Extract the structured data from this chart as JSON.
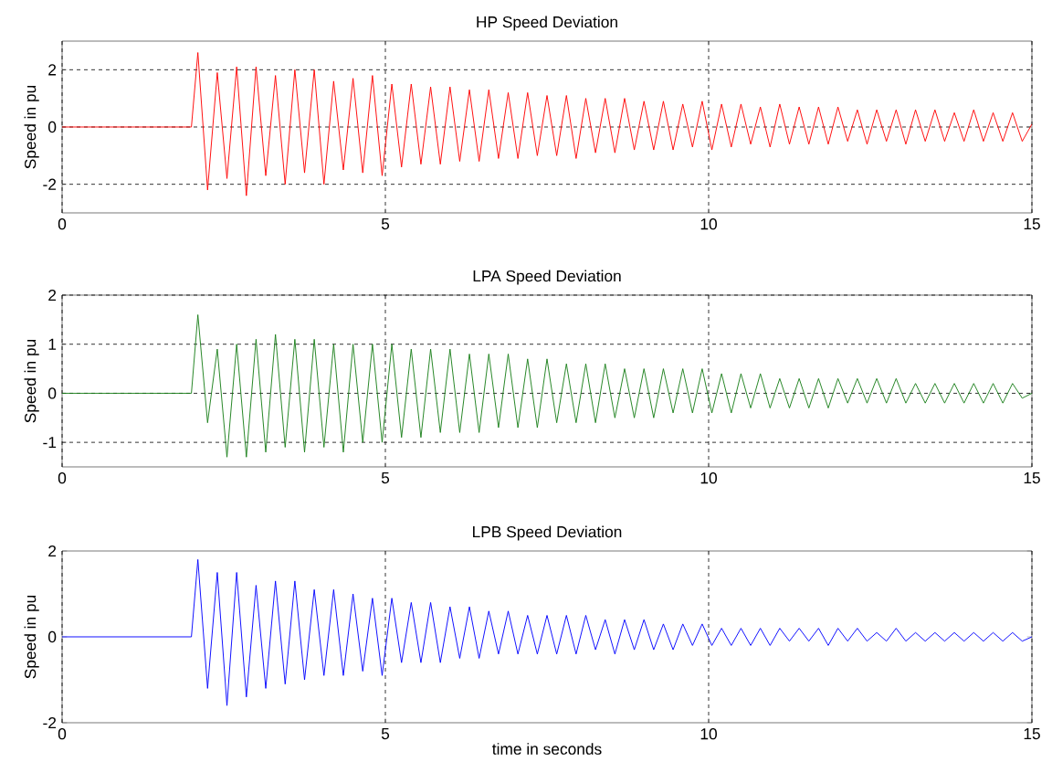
{
  "chart_data": [
    {
      "type": "line",
      "title": "HP Speed Deviation",
      "ylabel": "Speed in pu",
      "xlim": [
        0,
        15
      ],
      "ylim": [
        -3,
        3
      ],
      "xticks": [
        0,
        5,
        10,
        15
      ],
      "yticks": [
        -2,
        0,
        2
      ],
      "grid": true,
      "line_style": "solid",
      "x": [
        0,
        2,
        2.1,
        2.25,
        2.4,
        2.55,
        2.7,
        2.85,
        3,
        3.15,
        3.3,
        3.45,
        3.6,
        3.75,
        3.9,
        4.05,
        4.2,
        4.35,
        4.5,
        4.65,
        4.8,
        4.95,
        5.1,
        5.25,
        5.4,
        5.55,
        5.7,
        5.85,
        6,
        6.15,
        6.3,
        6.45,
        6.6,
        6.75,
        6.9,
        7.05,
        7.2,
        7.35,
        7.5,
        7.65,
        7.8,
        7.95,
        8.1,
        8.25,
        8.4,
        8.55,
        8.7,
        8.85,
        9,
        9.15,
        9.3,
        9.45,
        9.6,
        9.75,
        9.9,
        10.05,
        10.2,
        10.35,
        10.5,
        10.65,
        10.8,
        10.95,
        11.1,
        11.25,
        11.4,
        11.55,
        11.7,
        11.85,
        12,
        12.15,
        12.3,
        12.45,
        12.6,
        12.75,
        12.9,
        13.05,
        13.2,
        13.35,
        13.5,
        13.65,
        13.8,
        13.95,
        14.1,
        14.25,
        14.4,
        14.55,
        14.7,
        14.85,
        15
      ],
      "series": [
        {
          "color": "#ff0000",
          "values": [
            0,
            0,
            2.6,
            -2.2,
            1.9,
            -1.8,
            2.1,
            -2.4,
            2.1,
            -1.7,
            1.8,
            -2.0,
            2.0,
            -1.6,
            2.0,
            -2.0,
            1.6,
            -1.5,
            1.7,
            -1.6,
            1.8,
            -1.7,
            1.5,
            -1.4,
            1.5,
            -1.3,
            1.4,
            -1.3,
            1.4,
            -1.2,
            1.3,
            -1.2,
            1.3,
            -1.1,
            1.2,
            -1.1,
            1.2,
            -1.0,
            1.1,
            -1.0,
            1.1,
            -1.1,
            1.0,
            -0.9,
            1.0,
            -0.9,
            1.0,
            -0.8,
            0.9,
            -0.8,
            0.9,
            -0.8,
            0.8,
            -0.7,
            0.9,
            -0.8,
            0.8,
            -0.7,
            0.8,
            -0.6,
            0.7,
            -0.7,
            0.8,
            -0.6,
            0.7,
            -0.6,
            0.7,
            -0.6,
            0.7,
            -0.5,
            0.6,
            -0.6,
            0.6,
            -0.5,
            0.6,
            -0.6,
            0.6,
            -0.5,
            0.6,
            -0.5,
            0.5,
            -0.5,
            0.6,
            -0.5,
            0.5,
            -0.5,
            0.5,
            -0.5,
            0.1
          ]
        }
      ]
    },
    {
      "type": "line",
      "title": "LPA Speed Deviation",
      "ylabel": "Speed in pu",
      "xlim": [
        0,
        15
      ],
      "ylim": [
        -1.5,
        2
      ],
      "xticks": [
        0,
        5,
        10,
        15
      ],
      "yticks": [
        -1,
        0,
        1,
        2
      ],
      "grid": true,
      "line_style": "solid",
      "x": [
        0,
        2,
        2.1,
        2.25,
        2.4,
        2.55,
        2.7,
        2.85,
        3,
        3.15,
        3.3,
        3.45,
        3.6,
        3.75,
        3.9,
        4.05,
        4.2,
        4.35,
        4.5,
        4.65,
        4.8,
        4.95,
        5.1,
        5.25,
        5.4,
        5.55,
        5.7,
        5.85,
        6,
        6.15,
        6.3,
        6.45,
        6.6,
        6.75,
        6.9,
        7.05,
        7.2,
        7.35,
        7.5,
        7.65,
        7.8,
        7.95,
        8.1,
        8.25,
        8.4,
        8.55,
        8.7,
        8.85,
        9,
        9.15,
        9.3,
        9.45,
        9.6,
        9.75,
        9.9,
        10.05,
        10.2,
        10.35,
        10.5,
        10.65,
        10.8,
        10.95,
        11.1,
        11.25,
        11.4,
        11.55,
        11.7,
        11.85,
        12,
        12.15,
        12.3,
        12.45,
        12.6,
        12.75,
        12.9,
        13.05,
        13.2,
        13.35,
        13.5,
        13.65,
        13.8,
        13.95,
        14.1,
        14.25,
        14.4,
        14.55,
        14.7,
        14.85,
        15
      ],
      "series": [
        {
          "color": "#1a7f1a",
          "values": [
            0,
            0,
            1.6,
            -0.6,
            0.9,
            -1.3,
            1.0,
            -1.3,
            1.1,
            -1.2,
            1.2,
            -1.1,
            1.1,
            -1.2,
            1.1,
            -1.1,
            1.0,
            -1.2,
            1.0,
            -1.0,
            1.0,
            -1.0,
            1.0,
            -0.9,
            0.9,
            -0.9,
            0.9,
            -0.8,
            0.9,
            -0.8,
            0.8,
            -0.8,
            0.8,
            -0.7,
            0.8,
            -0.7,
            0.7,
            -0.7,
            0.7,
            -0.6,
            0.6,
            -0.6,
            0.6,
            -0.6,
            0.6,
            -0.5,
            0.5,
            -0.5,
            0.5,
            -0.5,
            0.5,
            -0.4,
            0.5,
            -0.4,
            0.5,
            -0.4,
            0.4,
            -0.4,
            0.4,
            -0.3,
            0.4,
            -0.3,
            0.3,
            -0.3,
            0.3,
            -0.3,
            0.3,
            -0.3,
            0.3,
            -0.2,
            0.3,
            -0.2,
            0.3,
            -0.2,
            0.3,
            -0.2,
            0.2,
            -0.2,
            0.2,
            -0.2,
            0.2,
            -0.2,
            0.2,
            -0.2,
            0.2,
            -0.2,
            0.2,
            -0.1,
            0
          ]
        }
      ]
    },
    {
      "type": "line",
      "title": "LPB Speed Deviation",
      "ylabel": "Speed in pu",
      "xlabel": "time in seconds",
      "xlim": [
        0,
        15
      ],
      "ylim": [
        -2,
        2
      ],
      "xticks": [
        0,
        5,
        10,
        15
      ],
      "yticks": [
        -2,
        0,
        2
      ],
      "grid": "x",
      "line_style": "solid",
      "x": [
        0,
        2,
        2.1,
        2.25,
        2.4,
        2.55,
        2.7,
        2.85,
        3,
        3.15,
        3.3,
        3.45,
        3.6,
        3.75,
        3.9,
        4.05,
        4.2,
        4.35,
        4.5,
        4.65,
        4.8,
        4.95,
        5.1,
        5.25,
        5.4,
        5.55,
        5.7,
        5.85,
        6,
        6.15,
        6.3,
        6.45,
        6.6,
        6.75,
        6.9,
        7.05,
        7.2,
        7.35,
        7.5,
        7.65,
        7.8,
        7.95,
        8.1,
        8.25,
        8.4,
        8.55,
        8.7,
        8.85,
        9,
        9.15,
        9.3,
        9.45,
        9.6,
        9.75,
        9.9,
        10.05,
        10.2,
        10.35,
        10.5,
        10.65,
        10.8,
        10.95,
        11.1,
        11.25,
        11.4,
        11.55,
        11.7,
        11.85,
        12,
        12.15,
        12.3,
        12.45,
        12.6,
        12.75,
        12.9,
        13.05,
        13.2,
        13.35,
        13.5,
        13.65,
        13.8,
        13.95,
        14.1,
        14.25,
        14.4,
        14.55,
        14.7,
        14.85,
        15
      ],
      "series": [
        {
          "color": "#0000ff",
          "values": [
            0,
            0,
            1.8,
            -1.2,
            1.5,
            -1.6,
            1.5,
            -1.4,
            1.2,
            -1.2,
            1.3,
            -1.1,
            1.3,
            -1.0,
            1.1,
            -0.9,
            1.1,
            -0.9,
            1.0,
            -0.8,
            0.9,
            -0.9,
            0.9,
            -0.6,
            0.8,
            -0.6,
            0.8,
            -0.6,
            0.7,
            -0.5,
            0.7,
            -0.5,
            0.6,
            -0.4,
            0.6,
            -0.4,
            0.5,
            -0.4,
            0.5,
            -0.4,
            0.5,
            -0.4,
            0.5,
            -0.3,
            0.4,
            -0.4,
            0.4,
            -0.3,
            0.4,
            -0.3,
            0.3,
            -0.3,
            0.3,
            -0.2,
            0.3,
            -0.2,
            0.2,
            -0.2,
            0.2,
            -0.2,
            0.2,
            -0.2,
            0.2,
            -0.1,
            0.2,
            -0.1,
            0.2,
            -0.2,
            0.2,
            -0.1,
            0.2,
            -0.1,
            0.1,
            -0.1,
            0.2,
            -0.1,
            0.1,
            -0.1,
            0.1,
            -0.1,
            0.1,
            -0.1,
            0.1,
            -0.1,
            0.1,
            -0.1,
            0.1,
            -0.1,
            0
          ]
        }
      ]
    }
  ]
}
